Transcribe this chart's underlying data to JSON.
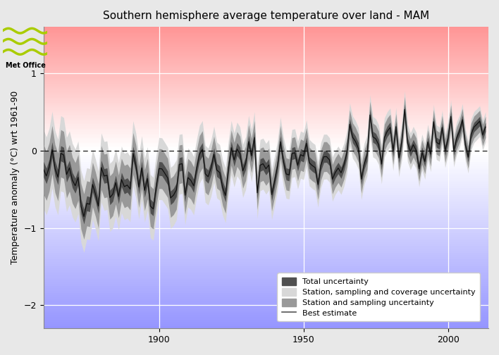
{
  "title": "Southern hemisphere average temperature over land - MAM",
  "ylabel": "Temperature anomaly (°C) wrt 1961-90",
  "xlim": [
    1860,
    2014
  ],
  "ylim": [
    -2.3,
    1.6
  ],
  "yticks": [
    -2,
    -1,
    0,
    1
  ],
  "xticks": [
    1900,
    1950,
    2000
  ],
  "bg_top_color": "#f5a0a0",
  "bg_bottom_color": "#9999dd",
  "legend_labels": [
    "Total uncertainty",
    "Station, sampling and coverage uncertainty",
    "Station and sampling uncertainty",
    "Best estimate"
  ],
  "color_total_unc": "#555555",
  "color_ssc_unc": "#d8d8d8",
  "color_ss_unc": "#999999",
  "color_best": "#111111",
  "fig_bg": "#e8e8e8",
  "seed": 42
}
